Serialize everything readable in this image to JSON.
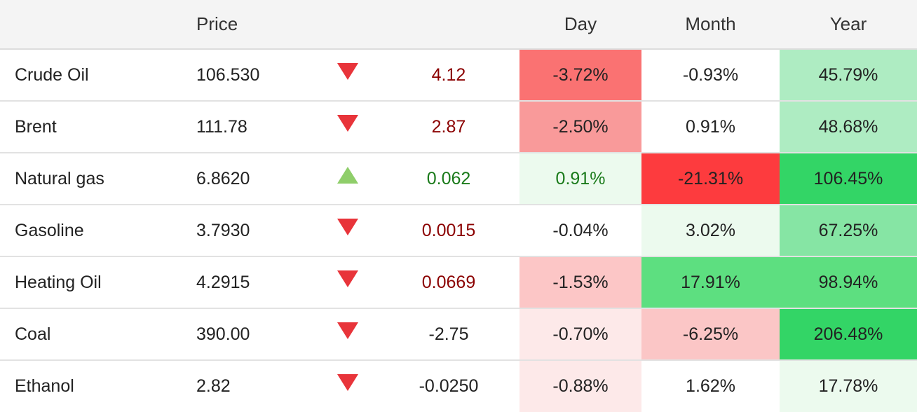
{
  "header": {
    "price": "Price",
    "day": "Day",
    "month": "Month",
    "year": "Year"
  },
  "rows": [
    {
      "name": "Crude Oil",
      "price": "106.530",
      "direction": "down",
      "change": "4.12",
      "change_tone": "neg",
      "day": "-3.72%",
      "month": "-0.93%",
      "year": "45.79%",
      "day_bg": "#fa7272",
      "month_bg": "#ffffff",
      "year_bg": "#aeecc2"
    },
    {
      "name": "Brent",
      "price": "111.78",
      "direction": "down",
      "change": "2.87",
      "change_tone": "neg",
      "day": "-2.50%",
      "month": "0.91%",
      "year": "48.68%",
      "day_bg": "#f99a9a",
      "month_bg": "#ffffff",
      "year_bg": "#aeecc2"
    },
    {
      "name": "Natural gas",
      "price": "6.8620",
      "direction": "up",
      "change": "0.062",
      "change_tone": "pos",
      "day": "0.91%",
      "month": "-21.31%",
      "year": "106.45%",
      "day_bg": "#ecfaee",
      "month_bg": "#fd3b3e",
      "year_bg": "#33d566"
    },
    {
      "name": "Gasoline",
      "price": "3.7930",
      "direction": "down",
      "change": "0.0015",
      "change_tone": "neg",
      "day": "-0.04%",
      "month": "3.02%",
      "year": "67.25%",
      "day_bg": "#ffffff",
      "month_bg": "#ecfaee",
      "year_bg": "#86e5a4"
    },
    {
      "name": "Heating Oil",
      "price": "4.2915",
      "direction": "down",
      "change": "0.0669",
      "change_tone": "neg",
      "day": "-1.53%",
      "month": "17.91%",
      "year": "98.94%",
      "day_bg": "#fcc6c6",
      "month_bg": "#5ddf80",
      "year_bg": "#5ddf80"
    },
    {
      "name": "Coal",
      "price": "390.00",
      "direction": "down",
      "change": "-2.75",
      "change_tone": "neu",
      "day": "-0.70%",
      "month": "-6.25%",
      "year": "206.48%",
      "day_bg": "#fde9e9",
      "month_bg": "#fbc6c6",
      "year_bg": "#33d566"
    },
    {
      "name": "Ethanol",
      "price": "2.82",
      "direction": "down",
      "change": "-0.0250",
      "change_tone": "neu",
      "day": "-0.88%",
      "month": "1.62%",
      "year": "17.78%",
      "day_bg": "#fde9e9",
      "month_bg": "#ffffff",
      "year_bg": "#ecfaee"
    }
  ]
}
